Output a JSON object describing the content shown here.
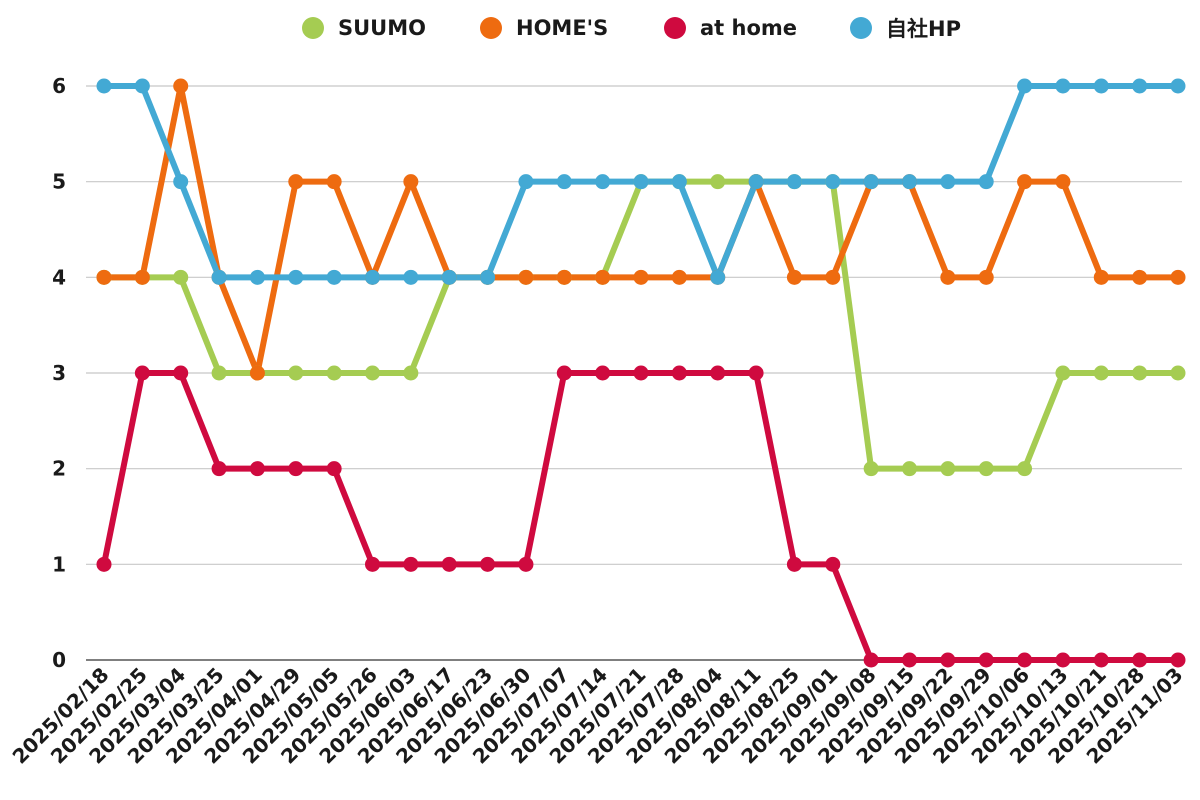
{
  "chart_data": {
    "type": "line",
    "title": "",
    "xlabel": "",
    "ylabel": "",
    "ylim": [
      0,
      6
    ],
    "yticks": [
      0,
      1,
      2,
      3,
      4,
      5,
      6
    ],
    "grid": true,
    "legend_position": "top",
    "categories": [
      "2025/02/18",
      "2025/02/25",
      "2025/03/04",
      "2025/03/25",
      "2025/04/01",
      "2025/04/29",
      "2025/05/05",
      "2025/05/26",
      "2025/06/03",
      "2025/06/17",
      "2025/06/23",
      "2025/06/30",
      "2025/07/07",
      "2025/07/14",
      "2025/07/21",
      "2025/07/28",
      "2025/08/04",
      "2025/08/11",
      "2025/08/25",
      "2025/09/01",
      "2025/09/08",
      "2025/09/15",
      "2025/09/22",
      "2025/09/29",
      "2025/10/06",
      "2025/10/13",
      "2025/10/21",
      "2025/10/28",
      "2025/11/03"
    ],
    "series": [
      {
        "name": "SUUMO",
        "color": "#a5cc52",
        "values": [
          4,
          4,
          4,
          3,
          3,
          3,
          3,
          3,
          3,
          4,
          4,
          4,
          4,
          4,
          5,
          5,
          5,
          5,
          5,
          5,
          2,
          2,
          2,
          2,
          2,
          3,
          3,
          3,
          3
        ]
      },
      {
        "name": "HOME'S",
        "color": "#ee6b10",
        "values": [
          4,
          4,
          6,
          4,
          3,
          5,
          5,
          4,
          5,
          4,
          4,
          4,
          4,
          4,
          4,
          4,
          4,
          5,
          4,
          4,
          5,
          5,
          4,
          4,
          5,
          5,
          4,
          4,
          4
        ]
      },
      {
        "name": "at home",
        "color": "#cf0a3f",
        "values": [
          1,
          3,
          3,
          2,
          2,
          2,
          2,
          1,
          1,
          1,
          1,
          1,
          3,
          3,
          3,
          3,
          3,
          3,
          1,
          1,
          0,
          0,
          0,
          0,
          0,
          0,
          0,
          0,
          0
        ]
      },
      {
        "name": "自社HP",
        "color": "#43a9d4",
        "values": [
          6,
          6,
          5,
          4,
          4,
          4,
          4,
          4,
          4,
          4,
          4,
          5,
          5,
          5,
          5,
          5,
          4,
          5,
          5,
          5,
          5,
          5,
          5,
          5,
          6,
          6,
          6,
          6,
          6
        ]
      }
    ]
  }
}
